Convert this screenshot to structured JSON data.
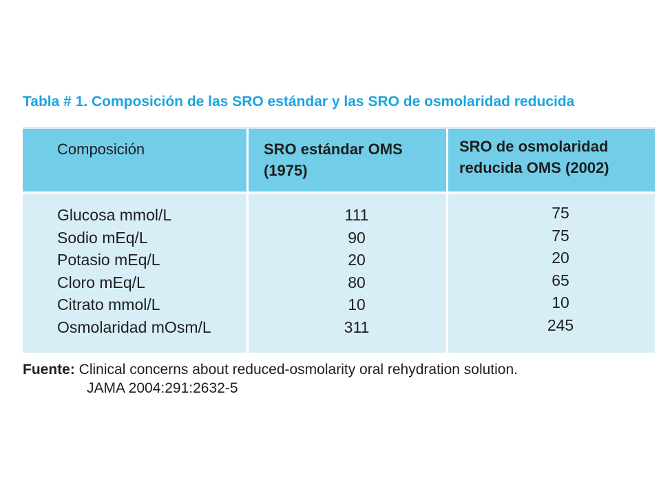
{
  "title": "Tabla # 1. Composición de las SRO estándar y las SRO de osmolaridad reducida",
  "table": {
    "headers": [
      {
        "line1": "Composición",
        "line2": ""
      },
      {
        "line1": "SRO estándar OMS",
        "line2": "(1975)"
      },
      {
        "line1": "SRO de osmolaridad",
        "line2": "reducida OMS (2002)"
      }
    ],
    "rows": [
      {
        "label": "Glucosa mmol/L",
        "standard": "111",
        "reduced": "75"
      },
      {
        "label": "Sodio mEq/L",
        "standard": "90",
        "reduced": "75"
      },
      {
        "label": "Potasio mEq/L",
        "standard": "20",
        "reduced": "20"
      },
      {
        "label": "Cloro mEq/L",
        "standard": "80",
        "reduced": "65"
      },
      {
        "label": "Citrato mmol/L",
        "standard": "10",
        "reduced": "10"
      },
      {
        "label": "Osmolaridad mOsm/L",
        "standard": "311",
        "reduced": "245"
      }
    ]
  },
  "source": {
    "label": "Fuente:",
    "line1": "Clinical concerns about reduced-osmolarity oral rehydration solution.",
    "line2": "JAMA 2004:291:2632-5"
  },
  "colors": {
    "title": "#1aa4e0",
    "header_bg": "#72cde8",
    "body_bg": "#d8eef7"
  }
}
